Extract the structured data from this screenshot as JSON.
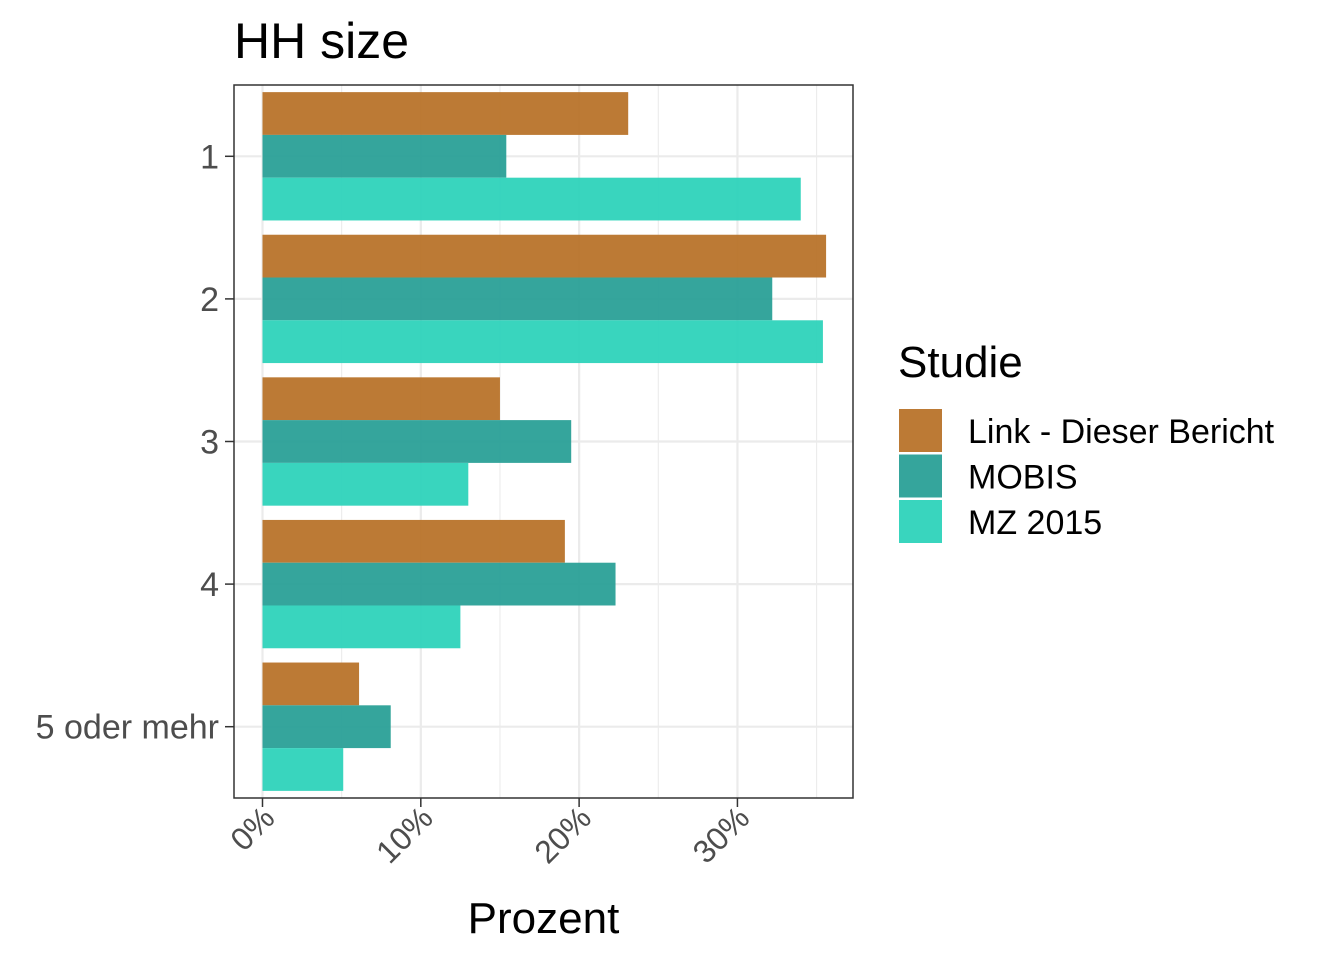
{
  "chart_data": {
    "type": "bar",
    "orientation": "horizontal",
    "title": "HH size",
    "xlabel": "Prozent",
    "ylabel": "",
    "categories": [
      "1",
      "2",
      "3",
      "4",
      "5 oder mehr"
    ],
    "x_ticks": [
      0,
      10,
      20,
      30
    ],
    "x_tick_labels": [
      "0%",
      "10%",
      "20%",
      "30%"
    ],
    "xlim": [
      -1.8,
      37.3
    ],
    "grid": true,
    "legend": {
      "title": "Studie",
      "placement": "right"
    },
    "series": [
      {
        "name": "Link - Dieser Bericht",
        "color": "#b8732a",
        "values": [
          23.1,
          35.6,
          15.0,
          19.1,
          6.1
        ]
      },
      {
        "name": "MOBIS",
        "color": "#2aa097",
        "values": [
          15.4,
          32.2,
          19.5,
          22.3,
          8.1
        ]
      },
      {
        "name": "MZ 2015",
        "color": "#2ed3bb",
        "values": [
          34.0,
          35.4,
          13.0,
          12.5,
          5.1
        ]
      }
    ]
  }
}
